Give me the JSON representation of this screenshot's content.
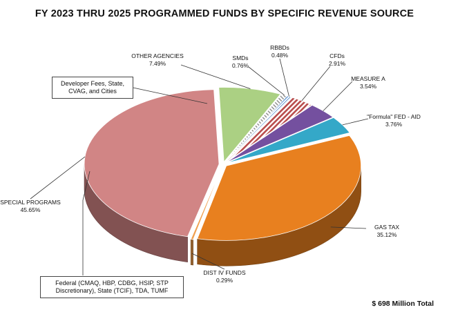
{
  "title": "FY 2023 THRU 2025 PROGRAMMED FUNDS BY SPECIFIC REVENUE SOURCE",
  "total_label": "$ 698 Million Total",
  "notes": {
    "developer_box": "Developer Fees, State, CVAG, and Cities",
    "federal_box": "Federal (CMAQ, HBP, CDBG, HSIP, STP Discretionary), State (TCIF), TDA, TUMF"
  },
  "chart_data": {
    "type": "pie",
    "title": "FY 2023 THRU 2025 PROGRAMMED FUNDS BY SPECIFIC REVENUE SOURCE",
    "unit": "%",
    "slices": [
      {
        "label": "GAS TAX",
        "value": 35.12,
        "display": "35.12%",
        "color": "#e8801f"
      },
      {
        "label": "DIST IV FUNDS",
        "value": 0.29,
        "display": "0.29%",
        "color": "#f0a050"
      },
      {
        "label": "SPECIAL PROGRAMS",
        "value": 45.65,
        "display": "45.65%",
        "color": "#d18585"
      },
      {
        "label": "OTHER AGENCIES",
        "value": 7.49,
        "display": "7.49%",
        "color": "#abd083"
      },
      {
        "label": "SMDs",
        "value": 0.76,
        "display": "0.76%",
        "color": "#dcdcdc"
      },
      {
        "label": "RBBDs",
        "value": 0.48,
        "display": "0.48%",
        "color": "#5f96d4"
      },
      {
        "label": "CFDs",
        "value": 2.91,
        "display": "2.91%",
        "color": "#bb5a5a"
      },
      {
        "label": "MEASURE A",
        "value": 3.54,
        "display": "3.54%",
        "color": "#74509f"
      },
      {
        "label": "\"Formula\" FED - AID",
        "value": 3.76,
        "display": "3.76%",
        "color": "#34a8c8"
      }
    ]
  }
}
